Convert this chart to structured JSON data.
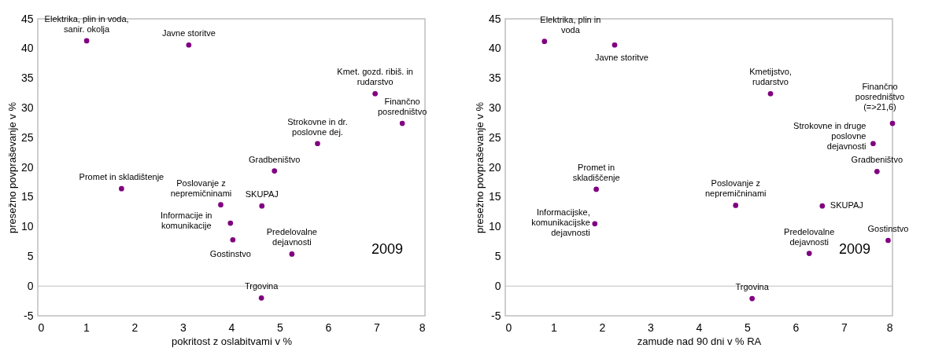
{
  "chart_data": [
    {
      "type": "scatter",
      "xlabel": "pokritost z oslabitvami v %",
      "ylabel": "presežno povpraševanje v %",
      "xlim": [
        0,
        8
      ],
      "xticks": [
        0,
        1,
        2,
        3,
        4,
        5,
        6,
        7,
        8
      ],
      "ylim": [
        -5,
        45
      ],
      "yticks": [
        -5,
        0,
        5,
        10,
        15,
        20,
        25,
        30,
        35,
        40,
        45
      ],
      "grid": false,
      "marker": "circle",
      "series": [
        {
          "color": "#800080",
          "x": [
            1.01,
            3.12,
            6.97,
            7.53,
            5.78,
            4.89,
            1.73,
            3.78,
            4.63,
            3.98,
            4.03,
            5.25,
            4.62
          ],
          "values": [
            41.3,
            40.6,
            32.4,
            27.4,
            24.0,
            19.4,
            16.4,
            13.7,
            13.5,
            10.6,
            7.8,
            5.4,
            -2.0
          ]
        }
      ],
      "ref_lines": [
        {
          "axis": "y",
          "value": 0,
          "color": "#bfbfbf"
        }
      ],
      "annotations": [
        {
          "text": "Elektrika, plin in voda,\nsanir. okolja",
          "x": 1.01,
          "y": 41.3
        },
        {
          "text": "Javne storitve",
          "x": 3.12,
          "y": 40.6
        },
        {
          "text": "Kmet. gozd. ribiš. in\nrudarstvo",
          "x": 6.97,
          "y": 32.4
        },
        {
          "text": "Finančno\nposredništvo",
          "x": 7.53,
          "y": 27.4
        },
        {
          "text": "Strokovne in dr.\nposlovne dej.",
          "x": 5.78,
          "y": 24.0
        },
        {
          "text": "Gradbeništvo",
          "x": 4.89,
          "y": 19.4
        },
        {
          "text": "Promet in skladištenje",
          "x": 1.73,
          "y": 16.4
        },
        {
          "text": "Poslovanje z\nnepremičninami",
          "x": 3.78,
          "y": 13.7
        },
        {
          "text": "SKUPAJ",
          "x": 4.63,
          "y": 13.5
        },
        {
          "text": "Informacije in\nkomunikacije",
          "x": 3.98,
          "y": 10.6
        },
        {
          "text": "Gostinstvo",
          "x": 4.03,
          "y": 7.8
        },
        {
          "text": "Predelovalne\ndejavnosti",
          "x": 5.25,
          "y": 5.4
        },
        {
          "text": "Trgovina",
          "x": 4.62,
          "y": -2.0
        },
        "2009"
      ]
    },
    {
      "type": "scatter",
      "xlabel": "zamude nad 90 dni v % RA",
      "ylabel": "presežno povpraševanje v %",
      "xlim": [
        0,
        8
      ],
      "xticks": [
        0,
        1,
        2,
        3,
        4,
        5,
        6,
        7,
        8
      ],
      "ylim": [
        -5,
        45
      ],
      "yticks": [
        -5,
        0,
        5,
        10,
        15,
        20,
        25,
        30,
        35,
        40,
        45
      ],
      "grid": false,
      "marker": "circle",
      "series": [
        {
          "color": "#800080",
          "x": [
            0.81,
            2.26,
            5.48,
            8.0,
            7.6,
            7.68,
            1.88,
            1.85,
            4.76,
            6.55,
            7.91,
            6.28,
            5.1
          ],
          "values": [
            41.2,
            40.6,
            32.4,
            27.4,
            24.0,
            19.3,
            16.3,
            10.5,
            13.6,
            13.5,
            7.7,
            5.5,
            -2.1
          ]
        }
      ],
      "ref_lines": [
        {
          "axis": "y",
          "value": 0,
          "color": "#bfbfbf"
        }
      ],
      "annotations": [
        {
          "text": "Elektrika, plin in\nvoda",
          "x": 0.81,
          "y": 41.2
        },
        {
          "text": "Javne storitve",
          "x": 2.26,
          "y": 40.6
        },
        {
          "text": "Kmetijstvo,\nrudarstvo",
          "x": 5.48,
          "y": 32.4
        },
        {
          "text": "Finančno\nposredništvo\n(=>21,6)",
          "x": 8.0,
          "y": 27.4
        },
        {
          "text": "Strokovne in druge\nposlovne\ndejavnosti",
          "x": 7.6,
          "y": 24.0
        },
        {
          "text": "Gradbeništvo",
          "x": 7.68,
          "y": 19.3
        },
        {
          "text": "Promet in\nskladiščenje",
          "x": 1.88,
          "y": 16.3
        },
        {
          "text": "Informacijske,\nkomunikacijske\ndejavnosti",
          "x": 1.85,
          "y": 10.5
        },
        {
          "text": "Poslovanje z\nnepremičninami",
          "x": 4.76,
          "y": 13.6
        },
        {
          "text": "SKUPAJ",
          "x": 6.55,
          "y": 13.5
        },
        {
          "text": "Gostinstvo",
          "x": 7.91,
          "y": 7.7
        },
        {
          "text": "Predelovalne\ndejavnosti",
          "x": 6.28,
          "y": 5.5
        },
        {
          "text": "Trgovina",
          "x": 5.1,
          "y": -2.1
        },
        "2009"
      ]
    }
  ]
}
